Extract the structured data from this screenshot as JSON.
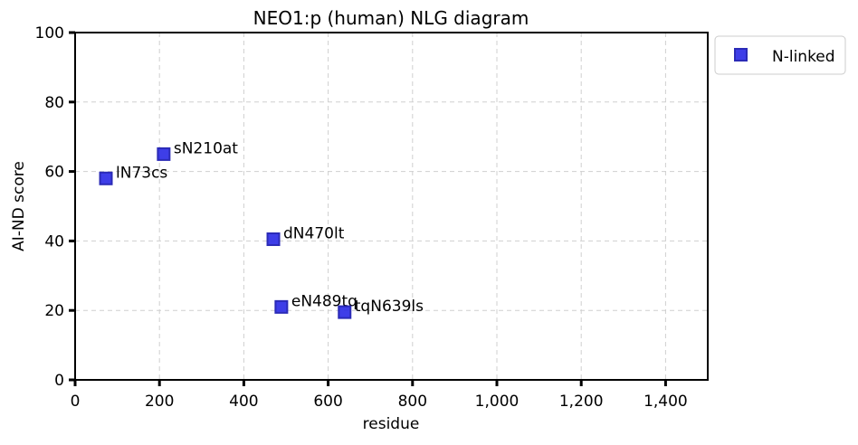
{
  "chart_data": {
    "type": "scatter",
    "title": "NEO1:p (human) NLG diagram",
    "xlabel": "residue",
    "ylabel": "AI-ND score",
    "xlim": [
      0,
      1500
    ],
    "ylim": [
      0,
      100
    ],
    "xticks": [
      0,
      200,
      400,
      600,
      800,
      1000,
      1200,
      1400
    ],
    "xtick_labels": [
      "0",
      "200",
      "400",
      "600",
      "800",
      "1,000",
      "1,200",
      "1,400"
    ],
    "yticks": [
      0,
      20,
      40,
      60,
      80,
      100
    ],
    "ytick_labels": [
      "0",
      "20",
      "40",
      "60",
      "80",
      "100"
    ],
    "grid": true,
    "legend_position": "outside-top-right",
    "series": [
      {
        "name": "N-linked",
        "color": "#2a2ae6",
        "marker": "square",
        "points": [
          {
            "x": 73,
            "y": 58,
            "label": "lN73cs"
          },
          {
            "x": 210,
            "y": 65,
            "label": "sN210at"
          },
          {
            "x": 470,
            "y": 40.5,
            "label": "dN470lt"
          },
          {
            "x": 489,
            "y": 21,
            "label": "eN489tq"
          },
          {
            "x": 639,
            "y": 19.5,
            "label": "tqN639ls"
          }
        ]
      }
    ]
  }
}
